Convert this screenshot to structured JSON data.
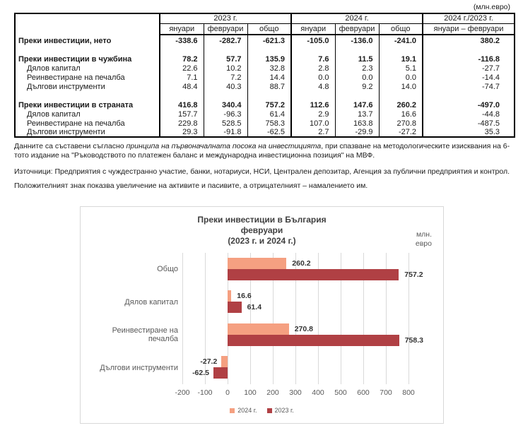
{
  "units_note": "(млн.евро)",
  "table": {
    "groups": [
      "2023 г.",
      "2024 г.",
      "2024 г./2023 г."
    ],
    "sub_headers": [
      "януари",
      "февруари",
      "общо",
      "януари",
      "февруари",
      "общо",
      "януари – февруари"
    ],
    "rows": [
      {
        "label": "Преки инвестиции, нето",
        "bold": true,
        "values": [
          "-338.6",
          "-282.7",
          "-621.3",
          "-105.0",
          "-136.0",
          "-241.0",
          "380.2"
        ]
      },
      {
        "spacer": true
      },
      {
        "label": "Преки инвестиции в чужбина",
        "bold": true,
        "values": [
          "78.2",
          "57.7",
          "135.9",
          "7.6",
          "11.5",
          "19.1",
          "-116.8"
        ]
      },
      {
        "label": "Дялов капитал",
        "indent": true,
        "values": [
          "22.6",
          "10.2",
          "32.8",
          "2.8",
          "2.3",
          "5.1",
          "-27.7"
        ]
      },
      {
        "label": "Реинвестиране на печалба",
        "indent": true,
        "values": [
          "7.1",
          "7.2",
          "14.4",
          "0.0",
          "0.0",
          "0.0",
          "-14.4"
        ]
      },
      {
        "label": "Дългови инструменти",
        "indent": true,
        "values": [
          "48.4",
          "40.3",
          "88.7",
          "4.8",
          "9.2",
          "14.0",
          "-74.7"
        ]
      },
      {
        "spacer": true
      },
      {
        "label": "Преки инвестиции в страната",
        "bold": true,
        "values": [
          "416.8",
          "340.4",
          "757.2",
          "112.6",
          "147.6",
          "260.2",
          "-497.0"
        ]
      },
      {
        "label": "Дялов капитал",
        "indent": true,
        "values": [
          "157.7",
          "-96.3",
          "61.4",
          "2.9",
          "13.7",
          "16.6",
          "-44.8"
        ]
      },
      {
        "label": "Реинвестиране на печалба",
        "indent": true,
        "values": [
          "229.8",
          "528.5",
          "758.3",
          "107.0",
          "163.8",
          "270.8",
          "-487.5"
        ]
      },
      {
        "label": "Дългови инструменти",
        "indent": true,
        "values": [
          "29.3",
          "-91.8",
          "-62.5",
          "2.7",
          "-29.9",
          "-27.2",
          "35.3"
        ]
      }
    ]
  },
  "footnotes": {
    "methodology_pre": "Данните са съставени съгласно ",
    "methodology_italic": "принципа на първоначалната посока на инвестицията",
    "methodology_post": ", при спазване на методологическите изисквания на 6-тото издание на \"Ръководството по платежен баланс и международна инвестиционна позиция\" на МВФ.",
    "sources": "Източници: Предприятия с чуждестранно участие, банки, нотариуси, НСИ, Централен депозитар, Агенция за публични предприятия и контрол.",
    "sign_note": "Положителният знак показва увеличение на активите и пасивите, а отрицателният – намалението им."
  },
  "chart_data": {
    "type": "bar",
    "orientation": "horizontal",
    "title": "Преки инвестиции в България",
    "subtitle": "февруари",
    "period": "(2023 г. и 2024 г.)",
    "units_line1": "млн.",
    "units_line2": "евро",
    "categories": [
      "Общо",
      "Дялов капитал",
      "Реинвестиране на печалба",
      "Дългови инструменти"
    ],
    "series": [
      {
        "name": "2024 г.",
        "color": "#F5A081",
        "values": [
          260.2,
          16.6,
          270.8,
          -27.2
        ]
      },
      {
        "name": "2023 г.",
        "color": "#B04044",
        "values": [
          757.2,
          61.4,
          758.3,
          -62.5
        ]
      }
    ],
    "xlim": [
      -200,
      800
    ],
    "xticks": [
      -200,
      -100,
      0,
      100,
      200,
      300,
      400,
      500,
      600,
      700,
      800
    ],
    "grid": true,
    "legend_position": "bottom"
  }
}
